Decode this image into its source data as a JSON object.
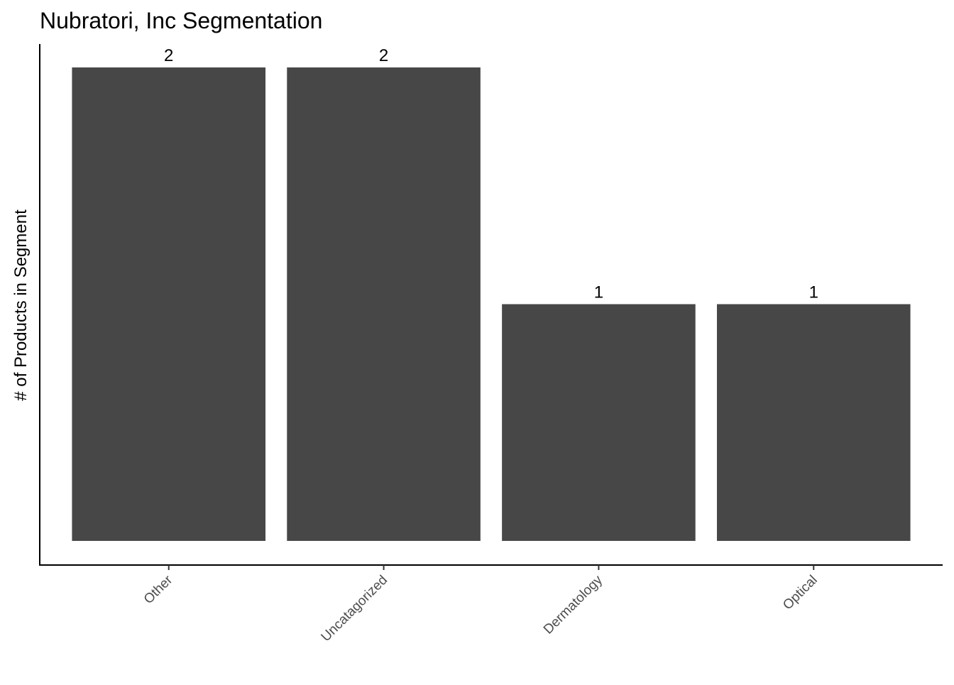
{
  "chart_data": {
    "type": "bar",
    "title": "Nubratori, Inc Segmentation",
    "xlabel": "",
    "ylabel": "# of Products in Segment",
    "categories": [
      "Other",
      "Uncatagorized",
      "Dermatology",
      "Optical"
    ],
    "values": [
      2,
      2,
      1,
      1
    ],
    "data_labels": [
      "2",
      "2",
      "1",
      "1"
    ],
    "ylim": [
      0,
      2.1
    ],
    "grid": false,
    "bar_color": "#474747"
  }
}
